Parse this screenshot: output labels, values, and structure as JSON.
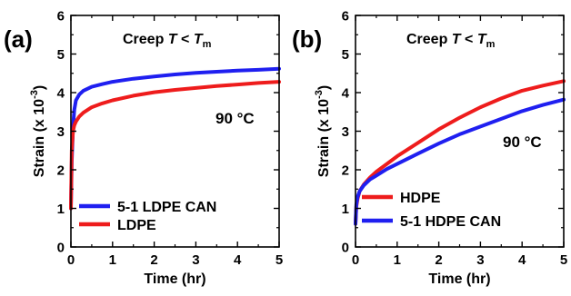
{
  "chart_data": [
    {
      "type": "line",
      "panel_label": "(a)",
      "annotation_title": {
        "prefix": "Creep ",
        "var": "T",
        "relation": " < ",
        "sub_base": "T",
        "sub": "m"
      },
      "temperature_label": "90 °C",
      "xlabel": "Time (hr)",
      "ylabel": {
        "base": "Strain (x 10",
        "exp": "-3",
        "close": ")"
      },
      "xlim": [
        0,
        5
      ],
      "ylim": [
        0,
        6
      ],
      "xticks": [
        "0",
        "1",
        "2",
        "3",
        "4",
        "5"
      ],
      "yticks": [
        "0",
        "1",
        "2",
        "3",
        "4",
        "5",
        "6"
      ],
      "legend_position": "bottom-left",
      "series": [
        {
          "name": "5-1 LDPE CAN",
          "color": "#1f1ff0",
          "x": [
            0,
            0.02,
            0.05,
            0.08,
            0.12,
            0.2,
            0.3,
            0.5,
            0.75,
            1,
            1.5,
            2,
            2.5,
            3,
            3.5,
            4,
            4.5,
            5
          ],
          "y": [
            1.0,
            2.2,
            3.1,
            3.55,
            3.8,
            3.95,
            4.05,
            4.15,
            4.22,
            4.28,
            4.36,
            4.42,
            4.47,
            4.51,
            4.54,
            4.57,
            4.59,
            4.62
          ]
        },
        {
          "name": "LDPE",
          "color": "#ee1c1c",
          "x": [
            0,
            0.02,
            0.05,
            0.08,
            0.12,
            0.2,
            0.3,
            0.5,
            0.75,
            1,
            1.5,
            2,
            2.5,
            3,
            3.5,
            4,
            4.5,
            5
          ],
          "y": [
            1.0,
            2.5,
            3.0,
            3.15,
            3.25,
            3.38,
            3.48,
            3.62,
            3.72,
            3.8,
            3.92,
            4.01,
            4.07,
            4.12,
            4.17,
            4.21,
            4.25,
            4.28
          ]
        }
      ]
    },
    {
      "type": "line",
      "panel_label": "(b)",
      "annotation_title": {
        "prefix": "Creep ",
        "var": "T",
        "relation": " < ",
        "sub_base": "T",
        "sub": "m"
      },
      "temperature_label": "90 °C",
      "xlabel": "Time (hr)",
      "ylabel": {
        "base": "Strain (x 10",
        "exp": "-3",
        "close": ")"
      },
      "xlim": [
        0,
        5
      ],
      "ylim": [
        0,
        6
      ],
      "xticks": [
        "0",
        "1",
        "2",
        "3",
        "4",
        "5"
      ],
      "yticks": [
        "0",
        "1",
        "2",
        "3",
        "4",
        "5",
        "6"
      ],
      "legend_position": "bottom-left",
      "series": [
        {
          "name": "HDPE",
          "color": "#ee1c1c",
          "x": [
            0,
            0.02,
            0.05,
            0.1,
            0.2,
            0.35,
            0.5,
            0.75,
            1,
            1.5,
            2,
            2.5,
            3,
            3.5,
            4,
            4.5,
            5
          ],
          "y": [
            0.6,
            1.05,
            1.25,
            1.45,
            1.62,
            1.8,
            1.95,
            2.15,
            2.35,
            2.7,
            3.05,
            3.35,
            3.62,
            3.85,
            4.05,
            4.18,
            4.3
          ]
        },
        {
          "name": "5-1 HDPE CAN",
          "color": "#1f1ff0",
          "x": [
            0,
            0.02,
            0.05,
            0.1,
            0.2,
            0.35,
            0.5,
            0.75,
            1,
            1.5,
            2,
            2.5,
            3,
            3.5,
            4,
            4.5,
            5
          ],
          "y": [
            0.6,
            1.1,
            1.3,
            1.45,
            1.6,
            1.75,
            1.85,
            2.02,
            2.15,
            2.42,
            2.68,
            2.92,
            3.12,
            3.32,
            3.52,
            3.68,
            3.82
          ]
        }
      ]
    }
  ]
}
